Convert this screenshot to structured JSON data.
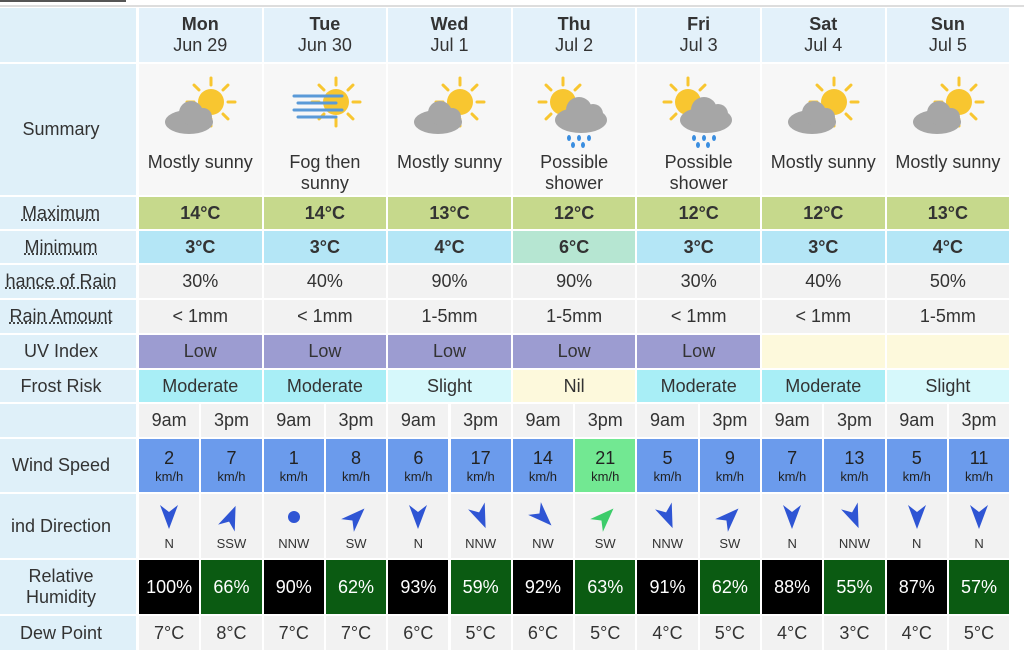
{
  "days": [
    {
      "day": "Mon",
      "date": "Jun 29"
    },
    {
      "day": "Tue",
      "date": "Jun 30"
    },
    {
      "day": "Wed",
      "date": "Jul 1"
    },
    {
      "day": "Thu",
      "date": "Jul 2"
    },
    {
      "day": "Fri",
      "date": "Jul 3"
    },
    {
      "day": "Sat",
      "date": "Jul 4"
    },
    {
      "day": "Sun",
      "date": "Jul 5"
    }
  ],
  "labels": {
    "summary": "Summary",
    "maximum": "Maximum",
    "minimum": "Minimum",
    "chance_of_rain": "hance of Rain",
    "rain_amount": "Rain Amount",
    "uv_index": "UV Index",
    "frost_risk": "Frost Risk",
    "wind_speed": "Wind Speed",
    "wind_direction": "ind Direction",
    "humidity": "Relative Humidity",
    "dew_point": "Dew Point"
  },
  "summary": [
    "Mostly sunny",
    "Fog then sunny",
    "Mostly sunny",
    "Possible shower",
    "Possible shower",
    "Mostly sunny",
    "Mostly sunny"
  ],
  "maximum": [
    "14°C",
    "14°C",
    "13°C",
    "12°C",
    "12°C",
    "12°C",
    "13°C"
  ],
  "minimum": [
    "3°C",
    "3°C",
    "4°C",
    "6°C",
    "3°C",
    "3°C",
    "4°C"
  ],
  "chance_of_rain": [
    "30%",
    "40%",
    "90%",
    "90%",
    "30%",
    "40%",
    "50%"
  ],
  "rain_amount": [
    "< 1mm",
    "< 1mm",
    "1-5mm",
    "1-5mm",
    "< 1mm",
    "< 1mm",
    "1-5mm"
  ],
  "uv_index": [
    "Low",
    "Low",
    "Low",
    "Low",
    "Low",
    null,
    null
  ],
  "frost_risk": [
    "Moderate",
    "Moderate",
    "Slight",
    "Nil",
    "Moderate",
    "Moderate",
    "Slight"
  ],
  "times": [
    "9am",
    "3pm"
  ],
  "wind_speed_unit": "km/h",
  "wind_speed": [
    2,
    7,
    1,
    8,
    6,
    17,
    14,
    21,
    5,
    9,
    7,
    13,
    5,
    11
  ],
  "wind_direction": [
    "N",
    "SSW",
    "NNW",
    "SW",
    "N",
    "NNW",
    "NW",
    "SW",
    "NNW",
    "SW",
    "N",
    "NNW",
    "N",
    "N"
  ],
  "humidity": [
    "100%",
    "66%",
    "90%",
    "62%",
    "93%",
    "59%",
    "92%",
    "63%",
    "91%",
    "62%",
    "88%",
    "55%",
    "87%",
    "57%"
  ],
  "dew_point": [
    "7°C",
    "8°C",
    "7°C",
    "7°C",
    "6°C",
    "5°C",
    "6°C",
    "5°C",
    "4°C",
    "5°C",
    "4°C",
    "3°C",
    "4°C",
    "5°C"
  ]
}
